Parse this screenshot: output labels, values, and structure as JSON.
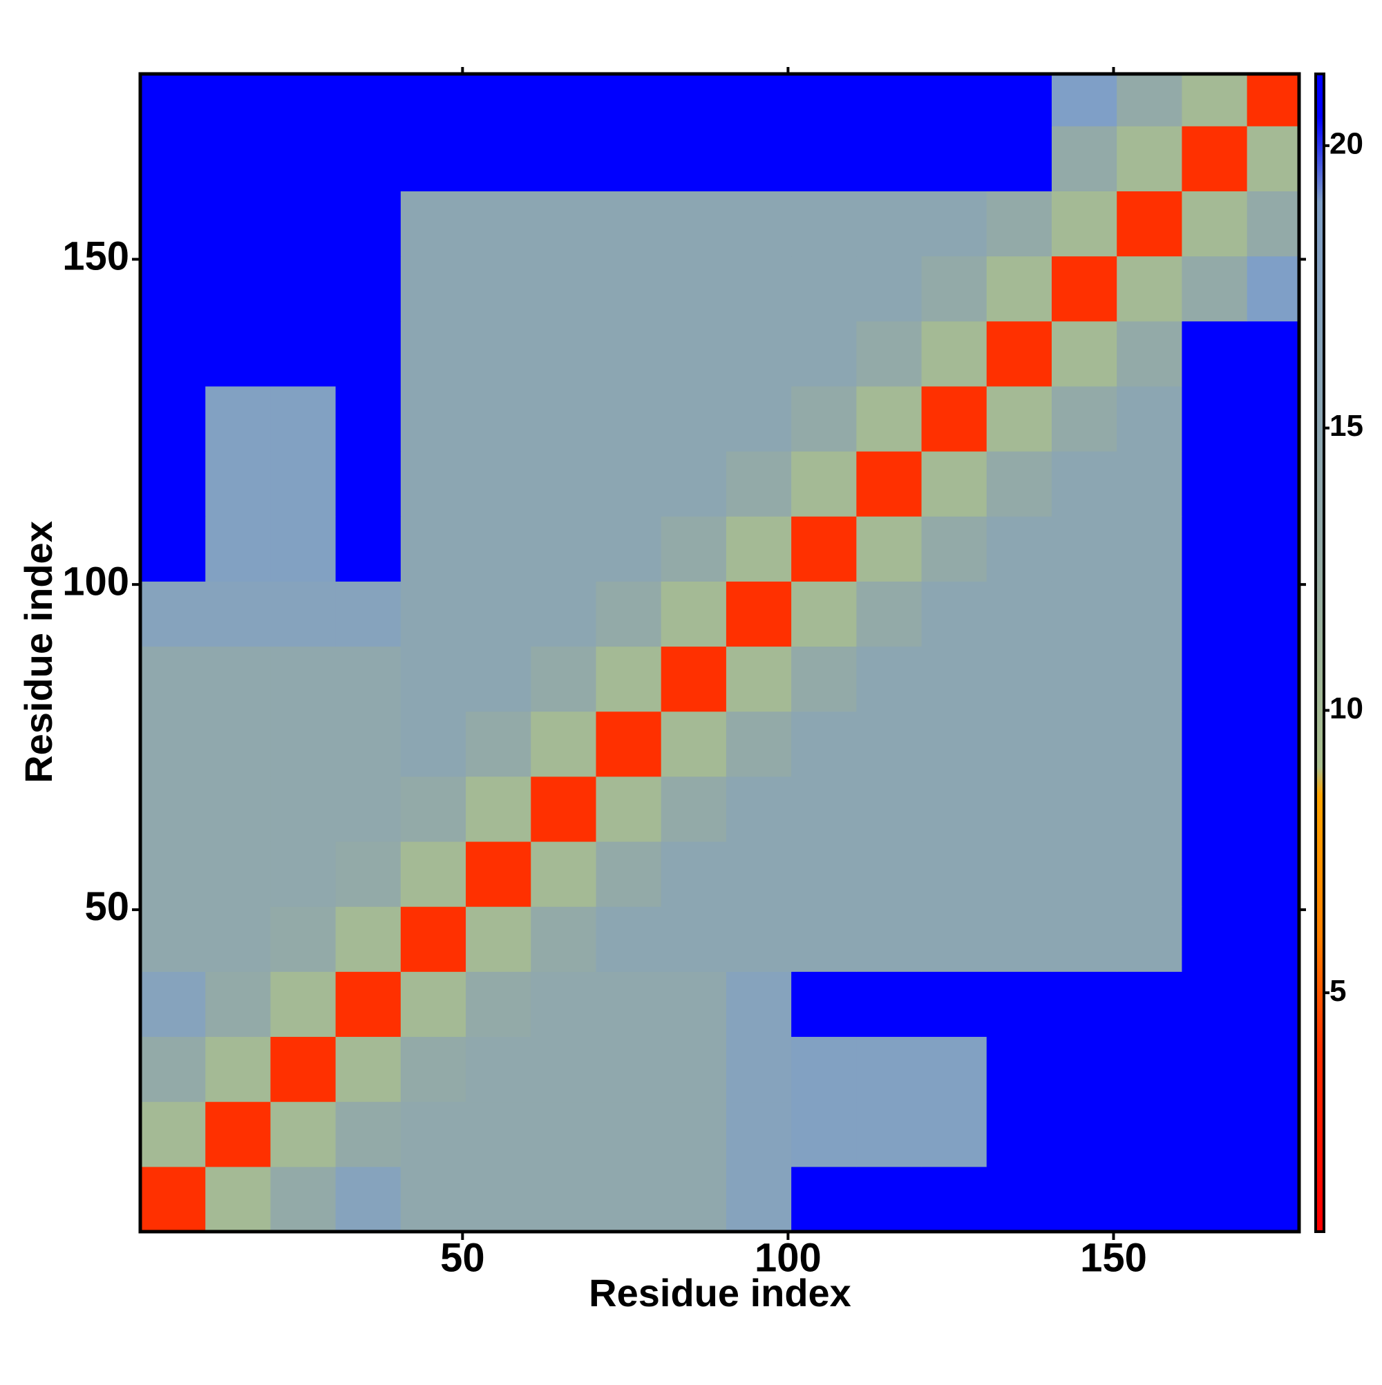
{
  "chart_data": {
    "type": "heatmap",
    "x_label": "Residue index",
    "y_label": "Residue index",
    "xlim": [
      0.5,
      178.5
    ],
    "ylim": [
      0.5,
      178.5
    ],
    "xticks": [
      50,
      100,
      150
    ],
    "yticks": [
      50,
      100,
      150
    ],
    "x_bins": [
      0.5,
      10.5,
      20.5,
      30.5,
      40.5,
      50.5,
      60.5,
      70.5,
      80.5,
      90.5,
      100.5,
      110.5,
      120.5,
      130.5,
      140.5,
      150.5,
      160.5,
      170.5,
      178.5
    ],
    "y_bins": [
      0.5,
      10.5,
      20.5,
      30.5,
      40.5,
      50.5,
      60.5,
      70.5,
      80.5,
      90.5,
      100.5,
      110.5,
      120.5,
      130.5,
      140.5,
      150.5,
      160.5,
      170.5,
      178.5
    ],
    "z": [
      [
        4,
        10,
        13,
        17,
        14,
        14,
        14,
        14,
        14,
        17,
        21,
        21,
        21,
        21,
        21,
        21,
        21,
        21
      ],
      [
        10,
        4,
        10,
        13,
        14,
        14,
        14,
        14,
        14,
        17,
        18,
        18,
        18,
        21,
        21,
        21,
        21,
        21
      ],
      [
        13,
        10,
        4,
        10,
        13,
        14,
        14,
        14,
        14,
        17,
        18,
        18,
        18,
        21,
        21,
        21,
        21,
        21
      ],
      [
        17,
        13,
        10,
        4,
        10,
        13,
        14,
        14,
        14,
        17,
        21,
        21,
        21,
        21,
        21,
        21,
        21,
        21
      ],
      [
        14,
        14,
        13,
        10,
        4,
        10,
        13,
        15,
        15,
        15,
        15,
        15,
        15,
        15,
        15,
        15,
        21,
        21
      ],
      [
        14,
        14,
        14,
        13,
        10,
        4,
        10,
        13,
        15,
        15,
        15,
        15,
        15,
        15,
        15,
        15,
        21,
        21
      ],
      [
        14,
        14,
        14,
        14,
        13,
        10,
        4,
        10,
        13,
        15,
        15,
        15,
        15,
        15,
        15,
        15,
        21,
        21
      ],
      [
        14,
        14,
        14,
        14,
        15,
        13,
        10,
        4,
        10,
        13,
        15,
        15,
        15,
        15,
        15,
        15,
        21,
        21
      ],
      [
        14,
        14,
        14,
        14,
        15,
        15,
        13,
        10,
        4,
        10,
        13,
        15,
        15,
        15,
        15,
        15,
        21,
        21
      ],
      [
        17,
        17,
        17,
        17,
        15,
        15,
        15,
        13,
        10,
        4,
        10,
        13,
        15,
        15,
        15,
        15,
        21,
        21
      ],
      [
        21,
        18,
        18,
        21,
        15,
        15,
        15,
        15,
        13,
        10,
        4,
        10,
        13,
        15,
        15,
        15,
        21,
        21
      ],
      [
        21,
        18,
        18,
        21,
        15,
        15,
        15,
        15,
        15,
        13,
        10,
        4,
        10,
        13,
        15,
        15,
        21,
        21
      ],
      [
        21,
        18,
        18,
        21,
        15,
        15,
        15,
        15,
        15,
        15,
        13,
        10,
        4,
        10,
        13,
        15,
        21,
        21
      ],
      [
        21,
        21,
        21,
        21,
        15,
        15,
        15,
        15,
        15,
        15,
        15,
        13,
        10,
        4,
        10,
        13,
        21,
        21
      ],
      [
        21,
        21,
        21,
        21,
        15,
        15,
        15,
        15,
        15,
        15,
        15,
        15,
        13,
        10,
        4,
        10,
        13,
        19
      ],
      [
        21,
        21,
        21,
        21,
        15,
        15,
        15,
        15,
        15,
        15,
        15,
        15,
        15,
        13,
        10,
        4,
        10,
        13
      ],
      [
        21,
        21,
        21,
        21,
        21,
        21,
        21,
        21,
        21,
        21,
        21,
        21,
        21,
        21,
        13,
        10,
        4,
        10
      ],
      [
        21,
        21,
        21,
        21,
        21,
        21,
        21,
        21,
        21,
        21,
        21,
        21,
        21,
        21,
        19,
        13,
        10,
        4
      ]
    ],
    "colorbar": {
      "clim": [
        0.77,
        21.27
      ],
      "ticks": [
        5,
        10,
        15,
        20
      ]
    },
    "colorscale": [
      {
        "value": 1,
        "color": "#ff0000"
      },
      {
        "value": 4,
        "color": "#ff3000"
      },
      {
        "value": 6,
        "color": "#ff8000"
      },
      {
        "value": 8.5,
        "color": "#ffa500"
      },
      {
        "value": 9,
        "color": "#a9bf8e"
      },
      {
        "value": 13,
        "color": "#93aaa8"
      },
      {
        "value": 19,
        "color": "#7f9fc7"
      },
      {
        "value": 20.5,
        "color": "#0000ff"
      }
    ]
  }
}
